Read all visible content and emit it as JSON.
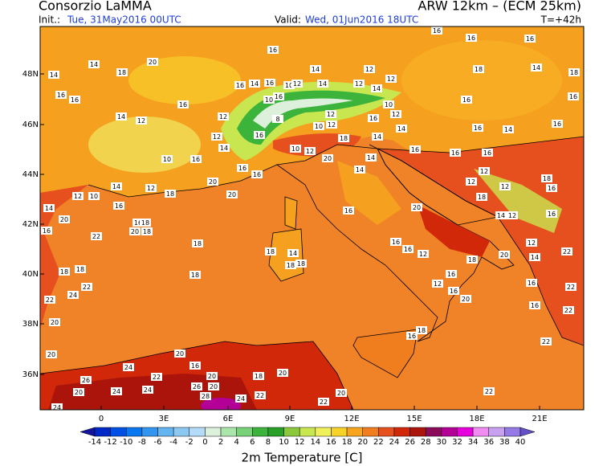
{
  "header": {
    "title": "Consorzio LaMMA",
    "model": "ARW 12km  –  (ECM 25km)",
    "init_label": "Init.:",
    "init": "Tue, 31May2016 00UTC",
    "valid_label": "Valid:",
    "valid": "Wed, 01Jun2016 18UTC",
    "lead": "T=+42h"
  },
  "axes": {
    "lat_labels": [
      "48N",
      "46N",
      "44N",
      "42N",
      "40N",
      "38N",
      "36N"
    ],
    "lon_labels": [
      "0",
      "3E",
      "6E",
      "9E",
      "12E",
      "15E",
      "18E",
      "21E"
    ]
  },
  "colorbar": {
    "label": "2m Temperature [C]",
    "ticks": [
      -14,
      -12,
      -10,
      -8,
      -6,
      -4,
      -2,
      0,
      2,
      4,
      6,
      8,
      10,
      12,
      14,
      16,
      18,
      20,
      22,
      24,
      26,
      28,
      30,
      32,
      34,
      36,
      38,
      40
    ],
    "colors": [
      "#1414a0",
      "#0028c8",
      "#0050e6",
      "#0a78f0",
      "#3296f0",
      "#64b4f0",
      "#8cc8f0",
      "#b4dcf8",
      "#dcf0dc",
      "#aae6aa",
      "#78d278",
      "#3cb43c",
      "#28a028",
      "#8cc83c",
      "#c8e650",
      "#f0f05a",
      "#f8d228",
      "#f8a51e",
      "#f07d1e",
      "#e6501e",
      "#d2280a",
      "#aa140a",
      "#8c0a5a",
      "#b40096",
      "#e600dc",
      "#f08cf0",
      "#c8a0f0",
      "#9678e6",
      "#6450c8"
    ]
  },
  "map_labels": [
    16,
    16,
    16,
    20,
    16,
    14,
    18,
    14,
    14,
    12,
    12,
    18,
    14,
    18,
    16,
    16,
    16,
    14,
    16,
    10,
    12,
    16,
    14,
    12,
    14,
    10,
    12,
    16,
    16,
    16,
    14,
    12,
    12,
    10,
    8,
    12,
    10,
    12,
    16,
    16,
    14,
    16,
    14,
    12,
    14,
    16,
    18,
    16,
    16,
    16,
    10,
    16,
    20,
    14,
    14,
    10,
    12,
    12,
    18,
    16,
    12,
    12,
    18,
    16,
    16,
    14,
    20,
    20,
    18,
    14,
    12,
    12,
    10,
    16,
    16,
    18,
    20,
    18,
    14,
    20,
    16,
    22,
    16,
    20,
    18,
    14,
    18,
    16,
    16,
    12,
    18,
    14,
    12,
    16,
    12,
    20,
    22,
    14,
    18,
    18,
    18,
    18,
    12,
    16,
    16,
    16,
    22,
    18,
    22,
    24,
    20,
    22,
    18,
    16,
    20,
    20,
    20,
    22,
    16,
    22,
    24,
    22,
    20,
    16,
    18,
    20,
    26,
    20,
    24,
    24,
    26,
    20,
    28,
    22,
    22,
    20,
    24,
    22,
    24
  ]
}
